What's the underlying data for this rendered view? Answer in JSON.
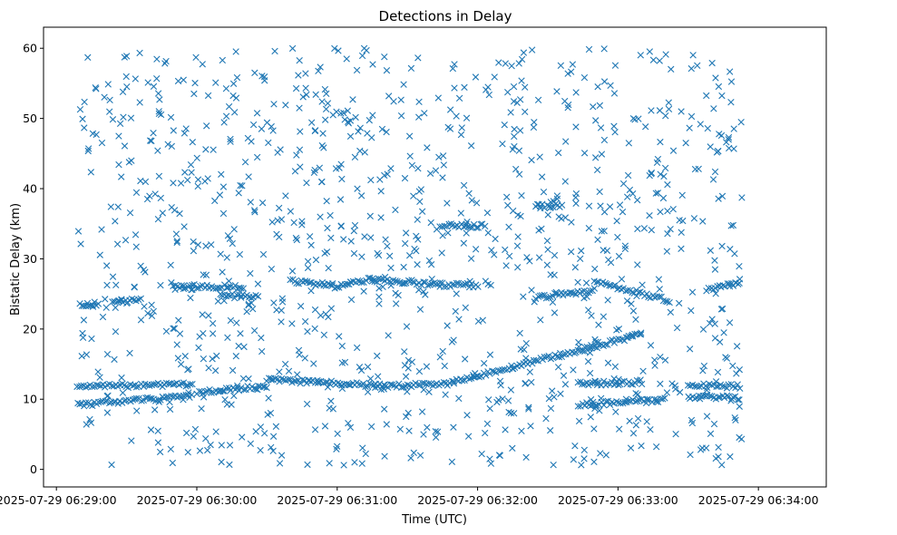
{
  "chart_data": {
    "type": "scatter",
    "title": "Detections in Delay",
    "xlabel": "Time (UTC)",
    "ylabel": "Bistatic Delay (km)",
    "marker": "x",
    "color": "#1f77b4",
    "grid": false,
    "x_unit": "seconds after 2025-07-29 06:28:00",
    "xlim": [
      54.5,
      389
    ],
    "ylim": [
      -2.5,
      63
    ],
    "x_ticks": [
      {
        "value": 60,
        "label": "2025-07-29 06:29:00"
      },
      {
        "value": 120,
        "label": "2025-07-29 06:30:00"
      },
      {
        "value": 180,
        "label": "2025-07-29 06:31:00"
      },
      {
        "value": 240,
        "label": "2025-07-29 06:32:00"
      },
      {
        "value": 300,
        "label": "2025-07-29 06:33:00"
      },
      {
        "value": 360,
        "label": "2025-07-29 06:34:00"
      }
    ],
    "y_ticks": [
      {
        "value": 0,
        "label": "0"
      },
      {
        "value": 10,
        "label": "10"
      },
      {
        "value": 20,
        "label": "20"
      },
      {
        "value": 30,
        "label": "30"
      },
      {
        "value": 40,
        "label": "40"
      },
      {
        "value": 50,
        "label": "50"
      },
      {
        "value": 60,
        "label": "60"
      }
    ],
    "tracks": [
      {
        "t_start": 69,
        "t_end": 118,
        "delay_start": 11.8,
        "delay_end": 12.1
      },
      {
        "t_start": 69,
        "t_end": 118,
        "delay_start": 9.2,
        "delay_end": 10.4
      },
      {
        "t_start": 120,
        "t_end": 150,
        "delay_start": 11.0,
        "delay_end": 11.8
      },
      {
        "t_start": 150,
        "t_end": 200,
        "delay_start": 12.8,
        "delay_end": 11.9
      },
      {
        "t_start": 200,
        "t_end": 230,
        "delay_start": 11.8,
        "delay_end": 12.3
      },
      {
        "t_start": 230,
        "t_end": 310,
        "delay_start": 12.5,
        "delay_end": 19.2
      },
      {
        "t_start": 283,
        "t_end": 310,
        "delay_start": 12.2,
        "delay_end": 12.4
      },
      {
        "t_start": 283,
        "t_end": 320,
        "delay_start": 9.2,
        "delay_end": 9.9
      },
      {
        "t_start": 330,
        "t_end": 352,
        "delay_start": 12.0,
        "delay_end": 11.8
      },
      {
        "t_start": 330,
        "t_end": 352,
        "delay_start": 10.4,
        "delay_end": 10.2
      },
      {
        "t_start": 70,
        "t_end": 78,
        "delay_start": 23.5,
        "delay_end": 23.6
      },
      {
        "t_start": 84,
        "t_end": 96,
        "delay_start": 24.0,
        "delay_end": 24.1
      },
      {
        "t_start": 110,
        "t_end": 118,
        "delay_start": 26.0,
        "delay_end": 25.9
      },
      {
        "t_start": 118,
        "t_end": 140,
        "delay_start": 26.1,
        "delay_end": 26.0
      },
      {
        "t_start": 130,
        "t_end": 146,
        "delay_start": 24.7,
        "delay_end": 24.7
      },
      {
        "t_start": 160,
        "t_end": 178,
        "delay_start": 26.8,
        "delay_end": 26.2
      },
      {
        "t_start": 178,
        "t_end": 195,
        "delay_start": 26.0,
        "delay_end": 27.2
      },
      {
        "t_start": 195,
        "t_end": 224,
        "delay_start": 27.0,
        "delay_end": 26.4
      },
      {
        "t_start": 224,
        "t_end": 240,
        "delay_start": 26.3,
        "delay_end": 26.2
      },
      {
        "t_start": 224,
        "t_end": 243,
        "delay_start": 34.7,
        "delay_end": 34.7
      },
      {
        "t_start": 265,
        "t_end": 276,
        "delay_start": 37.5,
        "delay_end": 37.6
      },
      {
        "t_start": 265,
        "t_end": 290,
        "delay_start": 24.5,
        "delay_end": 25.5
      },
      {
        "t_start": 290,
        "t_end": 322,
        "delay_start": 26.8,
        "delay_end": 24.0
      },
      {
        "t_start": 338,
        "t_end": 352,
        "delay_start": 25.7,
        "delay_end": 26.6
      }
    ]
  }
}
